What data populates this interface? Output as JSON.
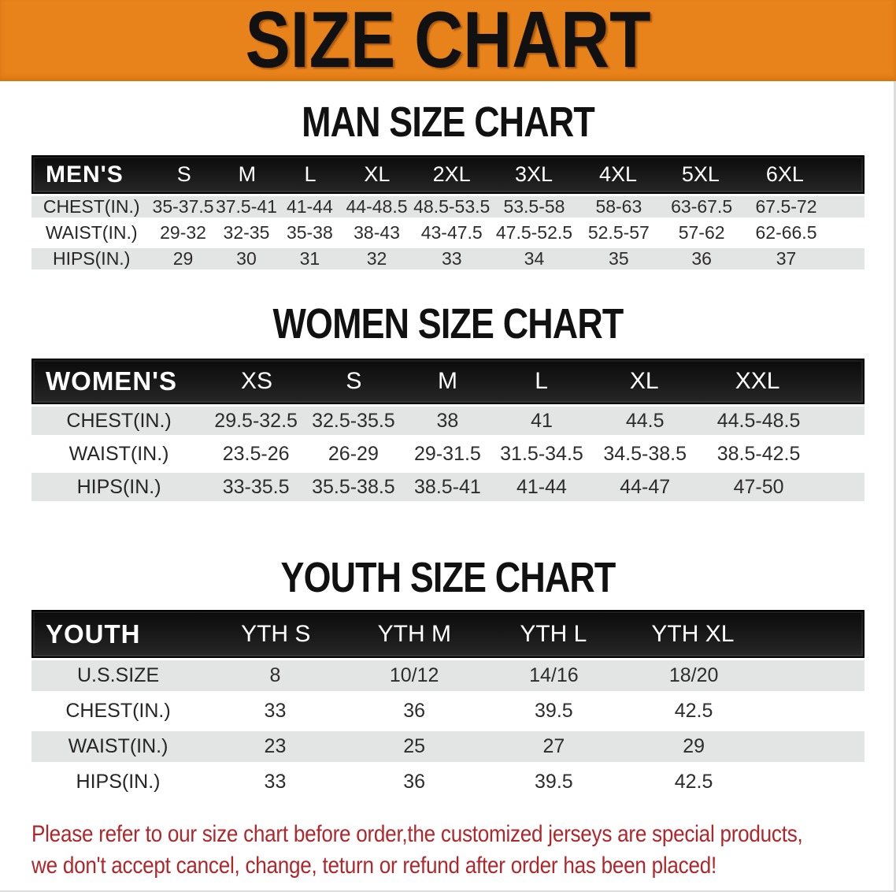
{
  "banner": {
    "title": "SIZE CHART"
  },
  "colors": {
    "banner_orange": "#E8821A",
    "header_black": "#141414",
    "row_gray": "#E3E4E4",
    "footer_red": "#B0272B"
  },
  "sections": [
    {
      "id": "men",
      "heading": "MAN SIZE CHART",
      "group_label": "MEN'S",
      "columns": [
        "S",
        "M",
        "L",
        "XL",
        "2XL",
        "3XL",
        "4XL",
        "5XL",
        "6XL"
      ],
      "rows": [
        {
          "label": "CHEST(IN.)",
          "values": [
            "35-37.5",
            "37.5-41",
            "41-44",
            "44-48.5",
            "48.5-53.5",
            "53.5-58",
            "58-63",
            "63-67.5",
            "67.5-72"
          ]
        },
        {
          "label": "WAIST(IN.)",
          "values": [
            "29-32",
            "32-35",
            "35-38",
            "38-43",
            "43-47.5",
            "47.5-52.5",
            "52.5-57",
            "57-62",
            "62-66.5"
          ]
        },
        {
          "label": "HIPS(IN.)",
          "values": [
            "29",
            "30",
            "31",
            "32",
            "33",
            "34",
            "35",
            "36",
            "37"
          ]
        }
      ]
    },
    {
      "id": "women",
      "heading": "WOMEN SIZE CHART",
      "group_label": "WOMEN'S",
      "columns": [
        "XS",
        "S",
        "M",
        "L",
        "XL",
        "XXL"
      ],
      "rows": [
        {
          "label": "CHEST(IN.)",
          "values": [
            "29.5-32.5",
            "32.5-35.5",
            "38",
            "41",
            "44.5",
            "44.5-48.5"
          ]
        },
        {
          "label": "WAIST(IN.)",
          "values": [
            "23.5-26",
            "26-29",
            "29-31.5",
            "31.5-34.5",
            "34.5-38.5",
            "38.5-42.5"
          ]
        },
        {
          "label": "HIPS(IN.)",
          "values": [
            "33-35.5",
            "35.5-38.5",
            "38.5-41",
            "41-44",
            "44-47",
            "47-50"
          ]
        }
      ]
    },
    {
      "id": "youth",
      "heading": "YOUTH SIZE CHART",
      "group_label": "YOUTH",
      "columns": [
        "YTH S",
        "YTH M",
        "YTH L",
        "YTH XL"
      ],
      "rows": [
        {
          "label": "U.S.SIZE",
          "values": [
            "8",
            "10/12",
            "14/16",
            "18/20"
          ]
        },
        {
          "label": "CHEST(IN.)",
          "values": [
            "33",
            "36",
            "39.5",
            "42.5"
          ]
        },
        {
          "label": "WAIST(IN.)",
          "values": [
            "23",
            "25",
            "27",
            "29"
          ]
        },
        {
          "label": "HIPS(IN.)",
          "values": [
            "33",
            "36",
            "39.5",
            "42.5"
          ]
        }
      ]
    }
  ],
  "footer": {
    "line1": "Please refer to our size chart before order,the customized jerseys are special products,",
    "line2": "we don't accept cancel, change, teturn or refund after order has been placed!"
  }
}
